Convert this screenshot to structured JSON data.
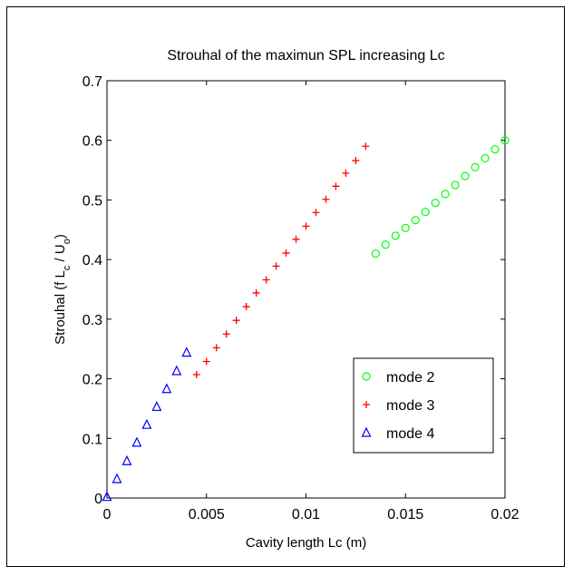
{
  "chart_data": {
    "type": "scatter",
    "title": "Strouhal of the maximun SPL increasing Lc",
    "xlabel": "Cavity length Lc (m)",
    "ylabel": {
      "main": "Strouhal  (f L",
      "sub1": "c",
      "mid": " / U",
      "sub2": "o",
      "end": ")"
    },
    "xlim": [
      0,
      0.02
    ],
    "ylim": [
      0,
      0.7
    ],
    "xticks": [
      0,
      0.005,
      0.01,
      0.015,
      0.02
    ],
    "xtick_labels": [
      "0",
      "0.005",
      "0.01",
      "0.015",
      "0.02"
    ],
    "yticks": [
      0,
      0.1,
      0.2,
      0.3,
      0.4,
      0.5,
      0.6,
      0.7
    ],
    "ytick_labels": [
      "0",
      "0.1",
      "0.2",
      "0.3",
      "0.4",
      "0.5",
      "0.6",
      "0.7"
    ],
    "grid": false,
    "legend_position": "lower-right",
    "series": [
      {
        "name": "mode 2",
        "marker": "circle",
        "color": "#00ff00",
        "x": [
          0.0135,
          0.014,
          0.0145,
          0.015,
          0.0155,
          0.016,
          0.0165,
          0.017,
          0.0175,
          0.018,
          0.0185,
          0.019,
          0.0195,
          0.02
        ],
        "y": [
          0.41,
          0.425,
          0.44,
          0.453,
          0.466,
          0.48,
          0.495,
          0.51,
          0.525,
          0.54,
          0.555,
          0.57,
          0.585,
          0.6
        ]
      },
      {
        "name": "mode 3",
        "marker": "plus",
        "color": "#ff0000",
        "x": [
          0.0045,
          0.005,
          0.0055,
          0.006,
          0.0065,
          0.007,
          0.0075,
          0.008,
          0.0085,
          0.009,
          0.0095,
          0.01,
          0.0105,
          0.011,
          0.0115,
          0.012,
          0.0125,
          0.013
        ],
        "y": [
          0.207,
          0.229,
          0.252,
          0.275,
          0.298,
          0.321,
          0.344,
          0.366,
          0.389,
          0.411,
          0.434,
          0.456,
          0.479,
          0.501,
          0.523,
          0.545,
          0.566,
          0.59
        ]
      },
      {
        "name": "mode 4",
        "marker": "triangle",
        "color": "#0000ff",
        "x": [
          0,
          0.0005,
          0.001,
          0.0015,
          0.002,
          0.0025,
          0.003,
          0.0035,
          0.004
        ],
        "y": [
          0.002,
          0.032,
          0.062,
          0.093,
          0.123,
          0.153,
          0.183,
          0.213,
          0.244
        ]
      }
    ]
  }
}
